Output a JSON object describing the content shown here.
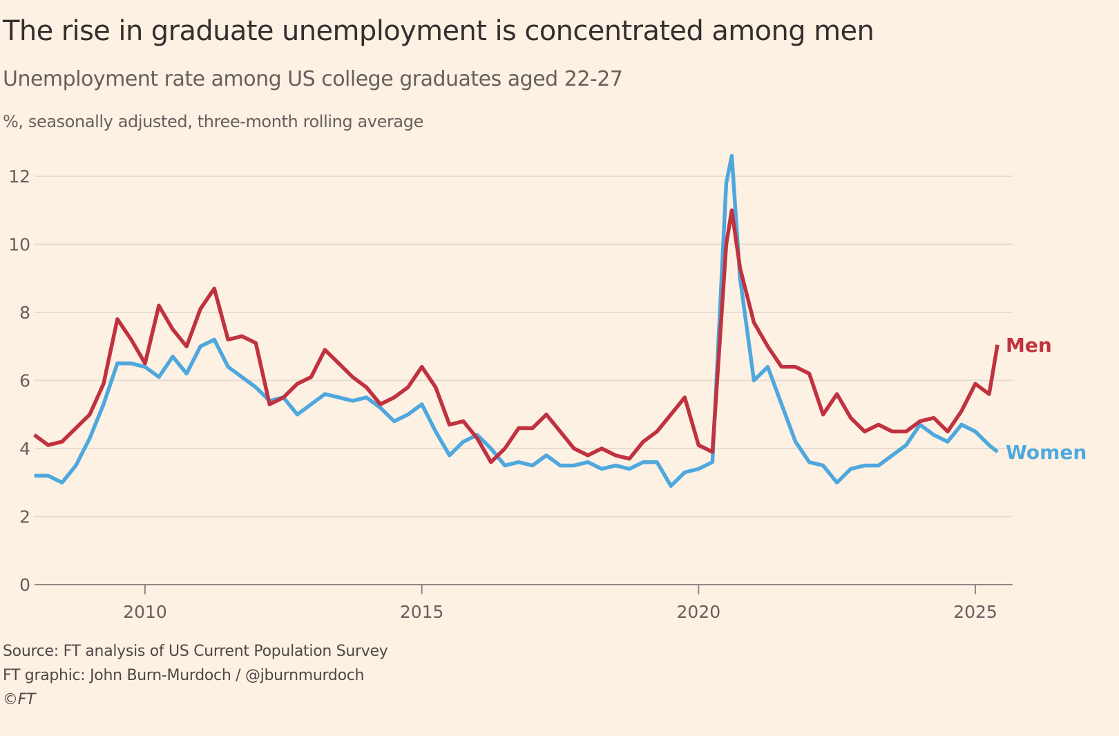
{
  "title": "The rise in graduate unemployment is concentrated among men",
  "subtitle": "Unemployment rate among US college graduates aged 22-27",
  "units_note": "%, seasonally adjusted, three-month rolling average",
  "footer": {
    "source": "Source: FT analysis of US Current Population Survey",
    "credit": "FT graphic: John Burn-Murdoch / @jburnmurdoch",
    "copyright": "©FT"
  },
  "colors": {
    "background": "#fdf1e4",
    "men": "#c0323f",
    "women": "#4fa8dd",
    "grid": "#e6dcd1",
    "axis": "#8f8984"
  },
  "chart_data": {
    "type": "line",
    "title": "The rise in graduate unemployment is concentrated among men",
    "subtitle": "Unemployment rate among US college graduates aged 22-27",
    "xlabel": "",
    "ylabel": "%, seasonally adjusted, three-month rolling average",
    "xlim": [
      2008.0,
      2025.7
    ],
    "ylim": [
      0,
      12.6
    ],
    "yticks": [
      0,
      2,
      4,
      6,
      8,
      10,
      12
    ],
    "ytick_labels": [
      "0",
      "2",
      "4",
      "6",
      "8",
      "10",
      "12"
    ],
    "xticks": [
      2010,
      2015,
      2020,
      2025
    ],
    "xtick_labels": [
      "2010",
      "2015",
      "2020",
      "2025"
    ],
    "grid": true,
    "legend": "direct labels at line ends (right)",
    "x": [
      2008.0,
      2008.25,
      2008.5,
      2008.75,
      2009.0,
      2009.25,
      2009.5,
      2009.75,
      2010.0,
      2010.25,
      2010.5,
      2010.75,
      2011.0,
      2011.25,
      2011.5,
      2011.75,
      2012.0,
      2012.25,
      2012.5,
      2012.75,
      2013.0,
      2013.25,
      2013.5,
      2013.75,
      2014.0,
      2014.25,
      2014.5,
      2014.75,
      2015.0,
      2015.25,
      2015.5,
      2015.75,
      2016.0,
      2016.25,
      2016.5,
      2016.75,
      2017.0,
      2017.25,
      2017.5,
      2017.75,
      2018.0,
      2018.25,
      2018.5,
      2018.75,
      2019.0,
      2019.25,
      2019.5,
      2019.75,
      2020.0,
      2020.25,
      2020.5,
      2020.6,
      2020.75,
      2021.0,
      2021.25,
      2021.5,
      2021.75,
      2022.0,
      2022.25,
      2022.5,
      2022.75,
      2023.0,
      2023.25,
      2023.5,
      2023.75,
      2024.0,
      2024.25,
      2024.5,
      2024.75,
      2025.0,
      2025.25,
      2025.4
    ],
    "series": [
      {
        "name": "Men",
        "color": "#c0323f",
        "values": [
          4.4,
          4.1,
          4.2,
          4.6,
          5.0,
          5.9,
          7.8,
          7.2,
          6.5,
          8.2,
          7.5,
          7.0,
          8.1,
          8.7,
          7.2,
          7.3,
          7.1,
          5.3,
          5.5,
          5.9,
          6.1,
          6.9,
          6.5,
          6.1,
          5.8,
          5.3,
          5.5,
          5.8,
          6.4,
          5.8,
          4.7,
          4.8,
          4.3,
          3.6,
          4.0,
          4.6,
          4.6,
          5.0,
          4.5,
          4.0,
          3.8,
          4.0,
          3.8,
          3.7,
          4.2,
          4.5,
          5.0,
          5.5,
          4.1,
          3.9,
          10.0,
          11.0,
          9.3,
          7.7,
          7.0,
          6.4,
          6.4,
          6.2,
          5.0,
          5.6,
          4.9,
          4.5,
          4.7,
          4.5,
          4.5,
          4.8,
          4.9,
          4.5,
          5.1,
          5.9,
          5.6,
          7.05
        ]
      },
      {
        "name": "Women",
        "color": "#4fa8dd",
        "values": [
          3.2,
          3.2,
          3.0,
          3.5,
          4.3,
          5.3,
          6.5,
          6.5,
          6.4,
          6.1,
          6.7,
          6.2,
          7.0,
          7.2,
          6.4,
          6.1,
          5.8,
          5.4,
          5.5,
          5.0,
          5.3,
          5.6,
          5.5,
          5.4,
          5.5,
          5.2,
          4.8,
          5.0,
          5.3,
          4.5,
          3.8,
          4.2,
          4.4,
          4.0,
          3.5,
          3.6,
          3.5,
          3.8,
          3.5,
          3.5,
          3.6,
          3.4,
          3.5,
          3.4,
          3.6,
          3.6,
          2.9,
          3.3,
          3.4,
          3.6,
          11.8,
          12.6,
          9.0,
          6.0,
          6.4,
          5.3,
          4.2,
          3.6,
          3.5,
          3.0,
          3.4,
          3.5,
          3.5,
          3.8,
          4.1,
          4.7,
          4.4,
          4.2,
          4.7,
          4.5,
          4.1,
          3.9
        ]
      }
    ]
  }
}
